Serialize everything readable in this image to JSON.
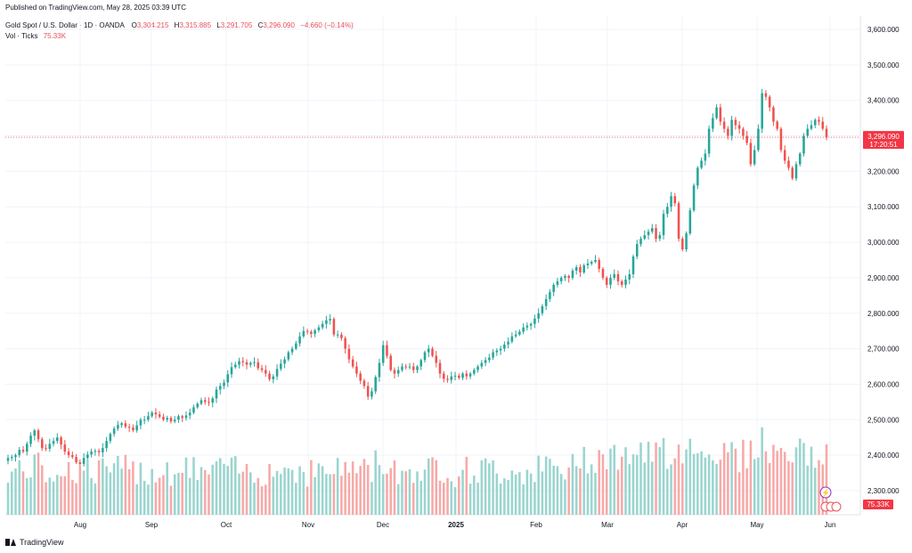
{
  "header": {
    "published": "Published on TradingView.com, May 28, 2025 03:39 UTC"
  },
  "legend": {
    "symbol": "Gold Spot / U.S. Dollar · 1D · OANDA",
    "o_label": "O",
    "o_value": "3,304.215",
    "h_label": "H",
    "h_value": "3,315.885",
    "l_label": "L",
    "l_value": "3,291.705",
    "c_label": "C",
    "c_value": "3,296.090",
    "change": "−4.660 (−0.14%)",
    "vol_label": "Vol · Ticks",
    "vol_value": "75.33K"
  },
  "price_marker": {
    "price": "3,296.090",
    "countdown": "17:20:51"
  },
  "volume_marker": {
    "value": "75.33K"
  },
  "footer": {
    "brand": "TradingView"
  },
  "colors": {
    "up": "#26a69a",
    "down": "#ef5350",
    "vol_up": "#9ad5cf",
    "vol_down": "#f7a9a8",
    "grid": "#f0f3fa",
    "text": "#131722",
    "marker": "#f23645"
  },
  "icons": {
    "footer_logo": "tradingview-logo-icon",
    "lightning": "lightning-icon",
    "flag": "us-flag-icon"
  },
  "chart_data": {
    "type": "candlestick",
    "interval": "1D",
    "y_axis": {
      "ticks": [
        "3,600.000",
        "3,500.000",
        "3,400.000",
        "3,300.000",
        "3,200.000",
        "3,100.000",
        "3,000.000",
        "2,900.000",
        "2,800.000",
        "2,700.000",
        "2,600.000",
        "2,500.000",
        "2,400.000",
        "2,300.000"
      ],
      "ylim": [
        2270,
        3630
      ]
    },
    "x_axis": {
      "ticks": [
        "Aug",
        "Sep",
        "Oct",
        "Nov",
        "Dec",
        "2025",
        "Feb",
        "Mar",
        "Apr",
        "May",
        "Jun"
      ]
    },
    "current_price": 3296.09,
    "close_series": [
      2392,
      2395,
      2400,
      2415,
      2410,
      2432,
      2455,
      2470,
      2445,
      2420,
      2418,
      2432,
      2440,
      2450,
      2430,
      2410,
      2400,
      2395,
      2380,
      2375,
      2392,
      2402,
      2410,
      2412,
      2408,
      2420,
      2440,
      2460,
      2475,
      2485,
      2490,
      2480,
      2478,
      2470,
      2484,
      2500,
      2500,
      2510,
      2520,
      2515,
      2508,
      2500,
      2505,
      2495,
      2500,
      2510,
      2505,
      2512,
      2520,
      2535,
      2545,
      2555,
      2550,
      2548,
      2560,
      2585,
      2595,
      2605,
      2628,
      2648,
      2655,
      2665,
      2662,
      2655,
      2660,
      2662,
      2645,
      2640,
      2630,
      2614,
      2622,
      2643,
      2658,
      2670,
      2690,
      2700,
      2715,
      2735,
      2750,
      2748,
      2742,
      2752,
      2760,
      2770,
      2780,
      2784,
      2740,
      2740,
      2730,
      2700,
      2670,
      2650,
      2630,
      2610,
      2595,
      2565,
      2580,
      2620,
      2660,
      2710,
      2680,
      2640,
      2630,
      2640,
      2650,
      2648,
      2650,
      2640,
      2650,
      2668,
      2690,
      2700,
      2680,
      2660,
      2630,
      2615,
      2612,
      2622,
      2624,
      2618,
      2630,
      2622,
      2630,
      2640,
      2650,
      2660,
      2668,
      2675,
      2690,
      2695,
      2700,
      2712,
      2720,
      2735,
      2740,
      2748,
      2760,
      2765,
      2770,
      2785,
      2800,
      2820,
      2840,
      2860,
      2880,
      2890,
      2900,
      2905,
      2900,
      2920,
      2930,
      2915,
      2935,
      2940,
      2945,
      2950,
      2925,
      2900,
      2880,
      2900,
      2910,
      2890,
      2880,
      2895,
      2910,
      2960,
      2995,
      3010,
      3020,
      3030,
      3040,
      3010,
      3020,
      3080,
      3100,
      3130,
      3110,
      3010,
      2980,
      3025,
      3090,
      3160,
      3210,
      3230,
      3250,
      3320,
      3350,
      3380,
      3340,
      3320,
      3300,
      3345,
      3330,
      3320,
      3300,
      3280,
      3220,
      3260,
      3320,
      3420,
      3410,
      3380,
      3340,
      3320,
      3260,
      3230,
      3210,
      3180,
      3220,
      3250,
      3300,
      3320,
      3330,
      3345,
      3340,
      3320,
      3296
    ]
  }
}
